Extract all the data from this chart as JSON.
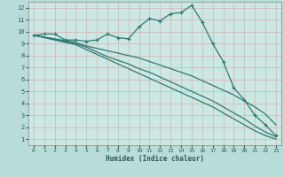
{
  "xlabel": "Humidex (Indice chaleur)",
  "xlim": [
    -0.5,
    23.5
  ],
  "ylim": [
    0.5,
    12.5
  ],
  "xticks": [
    0,
    1,
    2,
    3,
    4,
    5,
    6,
    7,
    8,
    9,
    10,
    11,
    12,
    13,
    14,
    15,
    16,
    17,
    18,
    19,
    20,
    21,
    22,
    23
  ],
  "yticks": [
    1,
    2,
    3,
    4,
    5,
    6,
    7,
    8,
    9,
    10,
    11,
    12
  ],
  "bg_color": "#b8ddd8",
  "plot_bg_color": "#cce8e4",
  "line_color": "#2d7a6e",
  "grid_color": "#d8b8b8",
  "line1_x": [
    0,
    1,
    2,
    3,
    4,
    5,
    6,
    7,
    8,
    9,
    10,
    11,
    12,
    13,
    14,
    15,
    16,
    17,
    18,
    19,
    20,
    21,
    22,
    23
  ],
  "line1_y": [
    9.7,
    9.8,
    9.8,
    9.3,
    9.3,
    9.2,
    9.3,
    9.8,
    9.5,
    9.4,
    10.4,
    11.1,
    10.9,
    11.5,
    11.6,
    12.2,
    10.8,
    9.0,
    7.5,
    5.3,
    4.3,
    3.0,
    2.2,
    1.3
  ],
  "line2_x": [
    0,
    4,
    5,
    6,
    7,
    8,
    9,
    10,
    11,
    12,
    13,
    14,
    15,
    16,
    17,
    18,
    19,
    20,
    21,
    22,
    23
  ],
  "line2_y": [
    9.7,
    9.1,
    8.8,
    8.6,
    8.4,
    8.2,
    8.0,
    7.8,
    7.5,
    7.2,
    6.9,
    6.6,
    6.3,
    5.9,
    5.5,
    5.1,
    4.7,
    4.2,
    3.7,
    3.1,
    2.2
  ],
  "line3_x": [
    0,
    4,
    5,
    6,
    7,
    8,
    9,
    10,
    11,
    12,
    13,
    14,
    15,
    16,
    17,
    18,
    19,
    20,
    21,
    22,
    23
  ],
  "line3_y": [
    9.7,
    9.0,
    8.7,
    8.3,
    7.9,
    7.6,
    7.3,
    6.9,
    6.6,
    6.2,
    5.8,
    5.4,
    5.0,
    4.6,
    4.2,
    3.7,
    3.2,
    2.7,
    2.1,
    1.6,
    1.2
  ],
  "line4_x": [
    0,
    4,
    5,
    6,
    7,
    8,
    9,
    10,
    11,
    12,
    13,
    14,
    15,
    16,
    17,
    18,
    19,
    20,
    21,
    22,
    23
  ],
  "line4_y": [
    9.7,
    8.9,
    8.5,
    8.1,
    7.7,
    7.3,
    6.9,
    6.5,
    6.1,
    5.7,
    5.3,
    4.9,
    4.5,
    4.1,
    3.7,
    3.2,
    2.7,
    2.2,
    1.7,
    1.3,
    1.0
  ]
}
